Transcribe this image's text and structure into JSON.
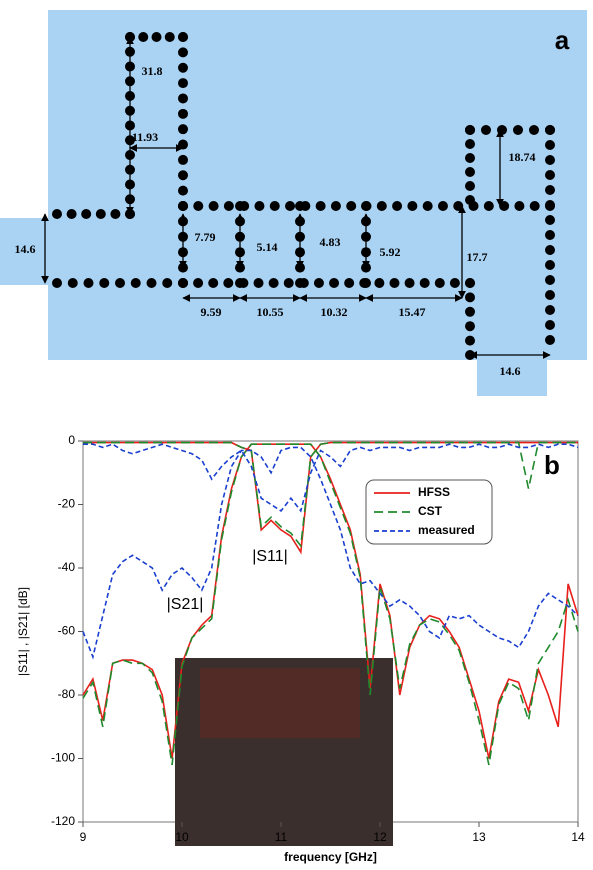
{
  "diagram": {
    "label": "a",
    "dimensions": [
      "31.8",
      "11.93",
      "18.74",
      "14.6",
      "7.79",
      "5.14",
      "4.83",
      "5.92",
      "17.7",
      "9.59",
      "10.55",
      "10.32",
      "15.47",
      "14.6"
    ]
  },
  "chart_data": {
    "type": "line",
    "label": "b",
    "x_label": "frequency [GHz]",
    "y_label": "|S11| , |S21|  [dB]",
    "annotations": [
      "|S11|",
      "|S21|"
    ],
    "xlim": [
      9,
      14
    ],
    "xticks": [
      9,
      10,
      11,
      12,
      13,
      14
    ],
    "ylim": [
      -120,
      0
    ],
    "yticks": [
      0,
      -20,
      -40,
      -60,
      -80,
      -100,
      -120
    ],
    "x": [
      9.0,
      9.1,
      9.2,
      9.3,
      9.4,
      9.5,
      9.6,
      9.7,
      9.8,
      9.9,
      10.0,
      10.1,
      10.2,
      10.3,
      10.4,
      10.5,
      10.6,
      10.7,
      10.8,
      10.9,
      11.0,
      11.1,
      11.2,
      11.3,
      11.4,
      11.5,
      11.6,
      11.7,
      11.8,
      11.9,
      12.0,
      12.1,
      12.2,
      12.3,
      12.4,
      12.5,
      12.6,
      12.7,
      12.8,
      12.9,
      13.0,
      13.1,
      13.2,
      13.3,
      13.4,
      13.5,
      13.6,
      13.7,
      13.8,
      13.9,
      14.0
    ],
    "series": [
      {
        "name": "HFSS",
        "color": "#e8201c",
        "dash": "none",
        "values": [
          -80,
          -75,
          -88,
          -70,
          -69,
          -69,
          -70,
          -72,
          -80,
          -100,
          -70,
          -62,
          -58,
          -55,
          -30,
          -15,
          -5,
          -1,
          -1,
          -1,
          -1,
          -1,
          -1,
          -1,
          -5,
          -12,
          -20,
          -28,
          -42,
          -78,
          -45,
          -55,
          -80,
          -65,
          -58,
          -55,
          -56,
          -60,
          -65,
          -75,
          -85,
          -100,
          -82,
          -75,
          -76,
          -85,
          -72,
          -80,
          -90,
          -45,
          -55
        ],
        "s11_values": [
          -0.5,
          -0.5,
          -0.5,
          -0.5,
          -0.5,
          -0.5,
          -0.5,
          -0.5,
          -0.5,
          -0.5,
          -0.5,
          -0.5,
          -0.5,
          -0.5,
          -0.5,
          -0.5,
          -2,
          -3,
          -28,
          -25,
          -28,
          -30,
          -35,
          -5,
          -1,
          -0.5,
          -0.5,
          -0.5,
          -0.5,
          -0.5,
          -0.5,
          -0.5,
          -0.5,
          -0.5,
          -0.5,
          -0.5,
          -0.5,
          -0.5,
          -0.5,
          -0.5,
          -0.5,
          -0.5,
          -0.5,
          -0.5,
          -0.5,
          -0.5,
          -0.5,
          -0.5,
          -0.5,
          -0.5,
          -0.5
        ]
      },
      {
        "name": "CST",
        "color": "#1f8a2c",
        "dash": "9 5",
        "values": [
          -81,
          -76,
          -90,
          -70,
          -69,
          -70,
          -70,
          -73,
          -82,
          -102,
          -71,
          -62,
          -59,
          -56,
          -31,
          -16,
          -5,
          -1,
          -1,
          -1,
          -1,
          -1,
          -1,
          -1,
          -5,
          -13,
          -21,
          -29,
          -43,
          -80,
          -46,
          -56,
          -78,
          -64,
          -58,
          -56,
          -57,
          -61,
          -66,
          -76,
          -88,
          -102,
          -83,
          -76,
          -78,
          -88,
          -70,
          -65,
          -60,
          -50,
          -60
        ],
        "s11_values": [
          -0.5,
          -0.5,
          -0.5,
          -0.5,
          -0.5,
          -0.5,
          -0.5,
          -0.5,
          -0.5,
          -0.5,
          -0.5,
          -0.5,
          -0.5,
          -0.5,
          -0.5,
          -0.5,
          -2,
          -3,
          -27,
          -24,
          -27,
          -29,
          -33,
          -5,
          -1,
          -0.5,
          -0.5,
          -0.5,
          -0.5,
          -0.5,
          -0.5,
          -0.5,
          -0.5,
          -0.5,
          -0.5,
          -0.5,
          -0.5,
          -0.5,
          -0.5,
          -0.5,
          -0.5,
          -0.5,
          -0.5,
          -0.5,
          -0.5,
          -15,
          -0.5,
          -0.5,
          -0.5,
          -0.5,
          -0.5
        ]
      },
      {
        "name": "measured",
        "color": "#1a3fd0",
        "dash": "5 3",
        "values": [
          -60,
          -68,
          -55,
          -42,
          -38,
          -36,
          -38,
          -40,
          -47,
          -42,
          -40,
          -43,
          -47,
          -40,
          -20,
          -8,
          -3,
          -3,
          -5,
          -10,
          -3,
          -2,
          -2,
          -5,
          -12,
          -20,
          -28,
          -40,
          -45,
          -44,
          -48,
          -52,
          -50,
          -52,
          -55,
          -60,
          -62,
          -55,
          -56,
          -55,
          -58,
          -60,
          -62,
          -63,
          -65,
          -60,
          -52,
          -48,
          -50,
          -52,
          -55
        ],
        "s11_values": [
          -1,
          -1,
          -2,
          -1,
          -3,
          -4,
          -3,
          -2,
          -1,
          -2,
          -3,
          -4,
          -6,
          -12,
          -8,
          -5,
          -3,
          -8,
          -18,
          -20,
          -22,
          -18,
          -22,
          -10,
          -3,
          -5,
          -8,
          -3,
          -2,
          -3,
          -2,
          -2,
          -2,
          -3,
          -2,
          -2,
          -2,
          -1,
          -2,
          -2,
          -1,
          -2,
          -2,
          -1,
          -2,
          -2,
          -1,
          -2,
          -1,
          -1,
          -2
        ]
      }
    ]
  }
}
